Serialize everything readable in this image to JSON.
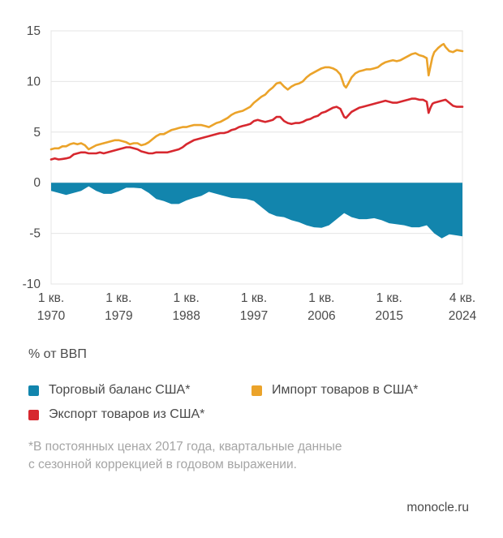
{
  "page": {
    "source": "monocle.ru"
  },
  "unit_label": "% от ВВП",
  "legend": {
    "items": [
      {
        "key": "trade-balance",
        "label": "Торговый баланс США*",
        "color": "#1285ad"
      },
      {
        "key": "imports",
        "label": "Импорт товаров в США*",
        "color": "#eba32a"
      },
      {
        "key": "exports",
        "label": "Экспорт товаров из США*",
        "color": "#d7282f"
      }
    ]
  },
  "footnote": {
    "line1": "*В постоянных ценах 2017 года, квартальные данные",
    "line2": "с сезонной коррекцией в годовом выражении."
  },
  "chart_data": {
    "type": "area",
    "title": "",
    "xlabel": "",
    "ylabel": "% от ВВП",
    "ylim": [
      -10,
      15
    ],
    "y_ticks": [
      15,
      10,
      5,
      0,
      -5,
      -10
    ],
    "x_range": [
      1970,
      2024.75
    ],
    "x_ticks": [
      {
        "q": "1 кв.",
        "year": "1970",
        "t": 1970
      },
      {
        "q": "1 кв.",
        "year": "1979",
        "t": 1979
      },
      {
        "q": "1 кв.",
        "year": "1988",
        "t": 1988
      },
      {
        "q": "1 кв.",
        "year": "1997",
        "t": 1997
      },
      {
        "q": "1 кв.",
        "year": "2006",
        "t": 2006
      },
      {
        "q": "1 кв.",
        "year": "2015",
        "t": 2015
      },
      {
        "q": "4 кв.",
        "year": "2024",
        "t": 2024.75
      }
    ],
    "grid": "horizontal",
    "grid_color": "#e4e4e4",
    "text_color": "#4a4a4a",
    "series": [
      {
        "key": "trade-balance",
        "name": "Торговый баланс США*",
        "type": "area",
        "color": "#1285ad",
        "points": [
          [
            1970,
            -0.8
          ],
          [
            1971,
            -1.0
          ],
          [
            1972,
            -1.2
          ],
          [
            1973,
            -1.0
          ],
          [
            1974,
            -0.8
          ],
          [
            1975,
            -0.35
          ],
          [
            1976,
            -0.8
          ],
          [
            1977,
            -1.1
          ],
          [
            1978,
            -1.1
          ],
          [
            1979,
            -0.85
          ],
          [
            1980,
            -0.5
          ],
          [
            1981,
            -0.5
          ],
          [
            1982,
            -0.55
          ],
          [
            1983,
            -1.0
          ],
          [
            1984,
            -1.6
          ],
          [
            1985,
            -1.8
          ],
          [
            1986,
            -2.1
          ],
          [
            1987,
            -2.1
          ],
          [
            1988,
            -1.75
          ],
          [
            1989,
            -1.5
          ],
          [
            1990,
            -1.3
          ],
          [
            1991,
            -0.9
          ],
          [
            1992,
            -1.1
          ],
          [
            1993,
            -1.3
          ],
          [
            1994,
            -1.5
          ],
          [
            1995,
            -1.55
          ],
          [
            1996,
            -1.6
          ],
          [
            1997,
            -1.8
          ],
          [
            1998,
            -2.4
          ],
          [
            1999,
            -3.0
          ],
          [
            2000,
            -3.3
          ],
          [
            2001,
            -3.4
          ],
          [
            2002,
            -3.7
          ],
          [
            2003,
            -3.9
          ],
          [
            2004,
            -4.2
          ],
          [
            2005,
            -4.4
          ],
          [
            2006,
            -4.45
          ],
          [
            2007,
            -4.2
          ],
          [
            2008,
            -3.6
          ],
          [
            2009,
            -3.0
          ],
          [
            2010,
            -3.4
          ],
          [
            2011,
            -3.6
          ],
          [
            2012,
            -3.6
          ],
          [
            2013,
            -3.5
          ],
          [
            2014,
            -3.7
          ],
          [
            2015,
            -4.0
          ],
          [
            2016,
            -4.1
          ],
          [
            2017,
            -4.2
          ],
          [
            2018,
            -4.4
          ],
          [
            2019,
            -4.4
          ],
          [
            2020,
            -4.2
          ],
          [
            2021,
            -5.0
          ],
          [
            2022,
            -5.5
          ],
          [
            2023,
            -5.1
          ],
          [
            2024,
            -5.2
          ],
          [
            2024.75,
            -5.3
          ]
        ]
      },
      {
        "key": "exports",
        "name": "Экспорт товаров из США*",
        "type": "line",
        "color": "#d7282f",
        "points": [
          [
            1970,
            2.3
          ],
          [
            1970.5,
            2.4
          ],
          [
            1971,
            2.3
          ],
          [
            1971.5,
            2.35
          ],
          [
            1972,
            2.4
          ],
          [
            1972.5,
            2.5
          ],
          [
            1973,
            2.8
          ],
          [
            1973.5,
            2.9
          ],
          [
            1974,
            3.0
          ],
          [
            1974.5,
            3.0
          ],
          [
            1975,
            2.9
          ],
          [
            1975.5,
            2.9
          ],
          [
            1976,
            2.9
          ],
          [
            1976.5,
            3.0
          ],
          [
            1977,
            2.9
          ],
          [
            1977.5,
            3.0
          ],
          [
            1978,
            3.1
          ],
          [
            1978.5,
            3.2
          ],
          [
            1979,
            3.3
          ],
          [
            1979.5,
            3.4
          ],
          [
            1980,
            3.5
          ],
          [
            1980.5,
            3.5
          ],
          [
            1981,
            3.4
          ],
          [
            1981.5,
            3.3
          ],
          [
            1982,
            3.1
          ],
          [
            1982.5,
            3.0
          ],
          [
            1983,
            2.9
          ],
          [
            1983.5,
            2.9
          ],
          [
            1984,
            3.0
          ],
          [
            1984.5,
            3.0
          ],
          [
            1985,
            3.0
          ],
          [
            1985.5,
            3.0
          ],
          [
            1986,
            3.1
          ],
          [
            1986.5,
            3.2
          ],
          [
            1987,
            3.3
          ],
          [
            1987.5,
            3.5
          ],
          [
            1988,
            3.8
          ],
          [
            1988.5,
            4.0
          ],
          [
            1989,
            4.2
          ],
          [
            1989.5,
            4.3
          ],
          [
            1990,
            4.4
          ],
          [
            1990.5,
            4.5
          ],
          [
            1991,
            4.6
          ],
          [
            1991.5,
            4.7
          ],
          [
            1992,
            4.8
          ],
          [
            1992.5,
            4.9
          ],
          [
            1993,
            4.9
          ],
          [
            1993.5,
            5.0
          ],
          [
            1994,
            5.2
          ],
          [
            1994.5,
            5.3
          ],
          [
            1995,
            5.5
          ],
          [
            1995.5,
            5.6
          ],
          [
            1996,
            5.7
          ],
          [
            1996.5,
            5.8
          ],
          [
            1997,
            6.1
          ],
          [
            1997.5,
            6.2
          ],
          [
            1998,
            6.1
          ],
          [
            1998.5,
            6.0
          ],
          [
            1999,
            6.1
          ],
          [
            1999.5,
            6.2
          ],
          [
            2000,
            6.5
          ],
          [
            2000.5,
            6.5
          ],
          [
            2001,
            6.1
          ],
          [
            2001.5,
            5.9
          ],
          [
            2002,
            5.8
          ],
          [
            2002.5,
            5.9
          ],
          [
            2003,
            5.9
          ],
          [
            2003.5,
            6.0
          ],
          [
            2004,
            6.2
          ],
          [
            2004.5,
            6.3
          ],
          [
            2005,
            6.5
          ],
          [
            2005.5,
            6.6
          ],
          [
            2006,
            6.9
          ],
          [
            2006.5,
            7.0
          ],
          [
            2007,
            7.2
          ],
          [
            2007.5,
            7.4
          ],
          [
            2008,
            7.5
          ],
          [
            2008.5,
            7.3
          ],
          [
            2009,
            6.5
          ],
          [
            2009.25,
            6.4
          ],
          [
            2009.5,
            6.6
          ],
          [
            2010,
            7.0
          ],
          [
            2010.5,
            7.2
          ],
          [
            2011,
            7.4
          ],
          [
            2011.5,
            7.5
          ],
          [
            2012,
            7.6
          ],
          [
            2012.5,
            7.7
          ],
          [
            2013,
            7.8
          ],
          [
            2013.5,
            7.9
          ],
          [
            2014,
            8.0
          ],
          [
            2014.5,
            8.1
          ],
          [
            2015,
            8.0
          ],
          [
            2015.5,
            7.9
          ],
          [
            2016,
            7.9
          ],
          [
            2016.5,
            8.0
          ],
          [
            2017,
            8.1
          ],
          [
            2017.5,
            8.2
          ],
          [
            2018,
            8.3
          ],
          [
            2018.5,
            8.3
          ],
          [
            2019,
            8.2
          ],
          [
            2019.5,
            8.2
          ],
          [
            2020,
            8.0
          ],
          [
            2020.25,
            6.9
          ],
          [
            2020.5,
            7.4
          ],
          [
            2020.75,
            7.8
          ],
          [
            2021,
            7.9
          ],
          [
            2021.5,
            8.0
          ],
          [
            2022,
            8.1
          ],
          [
            2022.5,
            8.2
          ],
          [
            2023,
            7.9
          ],
          [
            2023.5,
            7.6
          ],
          [
            2024,
            7.5
          ],
          [
            2024.75,
            7.5
          ]
        ]
      },
      {
        "key": "imports",
        "name": "Импорт товаров в США*",
        "type": "line",
        "color": "#eba32a",
        "points": [
          [
            1970,
            3.3
          ],
          [
            1970.5,
            3.4
          ],
          [
            1971,
            3.4
          ],
          [
            1971.5,
            3.6
          ],
          [
            1972,
            3.6
          ],
          [
            1972.5,
            3.8
          ],
          [
            1973,
            3.9
          ],
          [
            1973.5,
            3.8
          ],
          [
            1974,
            3.9
          ],
          [
            1974.5,
            3.7
          ],
          [
            1975,
            3.3
          ],
          [
            1975.5,
            3.5
          ],
          [
            1976,
            3.7
          ],
          [
            1976.5,
            3.8
          ],
          [
            1977,
            3.9
          ],
          [
            1977.5,
            4.0
          ],
          [
            1978,
            4.1
          ],
          [
            1978.5,
            4.2
          ],
          [
            1979,
            4.2
          ],
          [
            1979.5,
            4.1
          ],
          [
            1980,
            4.0
          ],
          [
            1980.5,
            3.8
          ],
          [
            1981,
            3.9
          ],
          [
            1981.5,
            3.9
          ],
          [
            1982,
            3.7
          ],
          [
            1982.5,
            3.8
          ],
          [
            1983,
            4.0
          ],
          [
            1983.5,
            4.3
          ],
          [
            1984,
            4.6
          ],
          [
            1984.5,
            4.8
          ],
          [
            1985,
            4.8
          ],
          [
            1985.5,
            5.0
          ],
          [
            1986,
            5.2
          ],
          [
            1986.5,
            5.3
          ],
          [
            1987,
            5.4
          ],
          [
            1987.5,
            5.5
          ],
          [
            1988,
            5.5
          ],
          [
            1988.5,
            5.6
          ],
          [
            1989,
            5.7
          ],
          [
            1989.5,
            5.7
          ],
          [
            1990,
            5.7
          ],
          [
            1990.5,
            5.6
          ],
          [
            1991,
            5.5
          ],
          [
            1991.5,
            5.7
          ],
          [
            1992,
            5.9
          ],
          [
            1992.5,
            6.0
          ],
          [
            1993,
            6.2
          ],
          [
            1993.5,
            6.4
          ],
          [
            1994,
            6.7
          ],
          [
            1994.5,
            6.9
          ],
          [
            1995,
            7.0
          ],
          [
            1995.5,
            7.1
          ],
          [
            1996,
            7.3
          ],
          [
            1996.5,
            7.5
          ],
          [
            1997,
            7.9
          ],
          [
            1997.5,
            8.2
          ],
          [
            1998,
            8.5
          ],
          [
            1998.5,
            8.7
          ],
          [
            1999,
            9.1
          ],
          [
            1999.5,
            9.4
          ],
          [
            2000,
            9.8
          ],
          [
            2000.5,
            9.9
          ],
          [
            2001,
            9.5
          ],
          [
            2001.5,
            9.2
          ],
          [
            2002,
            9.5
          ],
          [
            2002.5,
            9.7
          ],
          [
            2003,
            9.8
          ],
          [
            2003.5,
            10.0
          ],
          [
            2004,
            10.4
          ],
          [
            2004.5,
            10.7
          ],
          [
            2005,
            10.9
          ],
          [
            2005.5,
            11.1
          ],
          [
            2006,
            11.3
          ],
          [
            2006.5,
            11.4
          ],
          [
            2007,
            11.4
          ],
          [
            2007.5,
            11.3
          ],
          [
            2008,
            11.1
          ],
          [
            2008.5,
            10.7
          ],
          [
            2009,
            9.6
          ],
          [
            2009.25,
            9.4
          ],
          [
            2009.5,
            9.7
          ],
          [
            2010,
            10.4
          ],
          [
            2010.5,
            10.8
          ],
          [
            2011,
            11.0
          ],
          [
            2011.5,
            11.1
          ],
          [
            2012,
            11.2
          ],
          [
            2012.5,
            11.2
          ],
          [
            2013,
            11.3
          ],
          [
            2013.5,
            11.4
          ],
          [
            2014,
            11.7
          ],
          [
            2014.5,
            11.9
          ],
          [
            2015,
            12.0
          ],
          [
            2015.5,
            12.1
          ],
          [
            2016,
            12.0
          ],
          [
            2016.5,
            12.1
          ],
          [
            2017,
            12.3
          ],
          [
            2017.5,
            12.5
          ],
          [
            2018,
            12.7
          ],
          [
            2018.5,
            12.8
          ],
          [
            2019,
            12.6
          ],
          [
            2019.5,
            12.5
          ],
          [
            2020,
            12.3
          ],
          [
            2020.25,
            10.6
          ],
          [
            2020.5,
            11.5
          ],
          [
            2020.75,
            12.4
          ],
          [
            2021,
            12.9
          ],
          [
            2021.5,
            13.3
          ],
          [
            2022,
            13.6
          ],
          [
            2022.25,
            13.7
          ],
          [
            2022.5,
            13.4
          ],
          [
            2023,
            13.0
          ],
          [
            2023.5,
            12.9
          ],
          [
            2024,
            13.1
          ],
          [
            2024.75,
            13.0
          ]
        ]
      }
    ]
  }
}
